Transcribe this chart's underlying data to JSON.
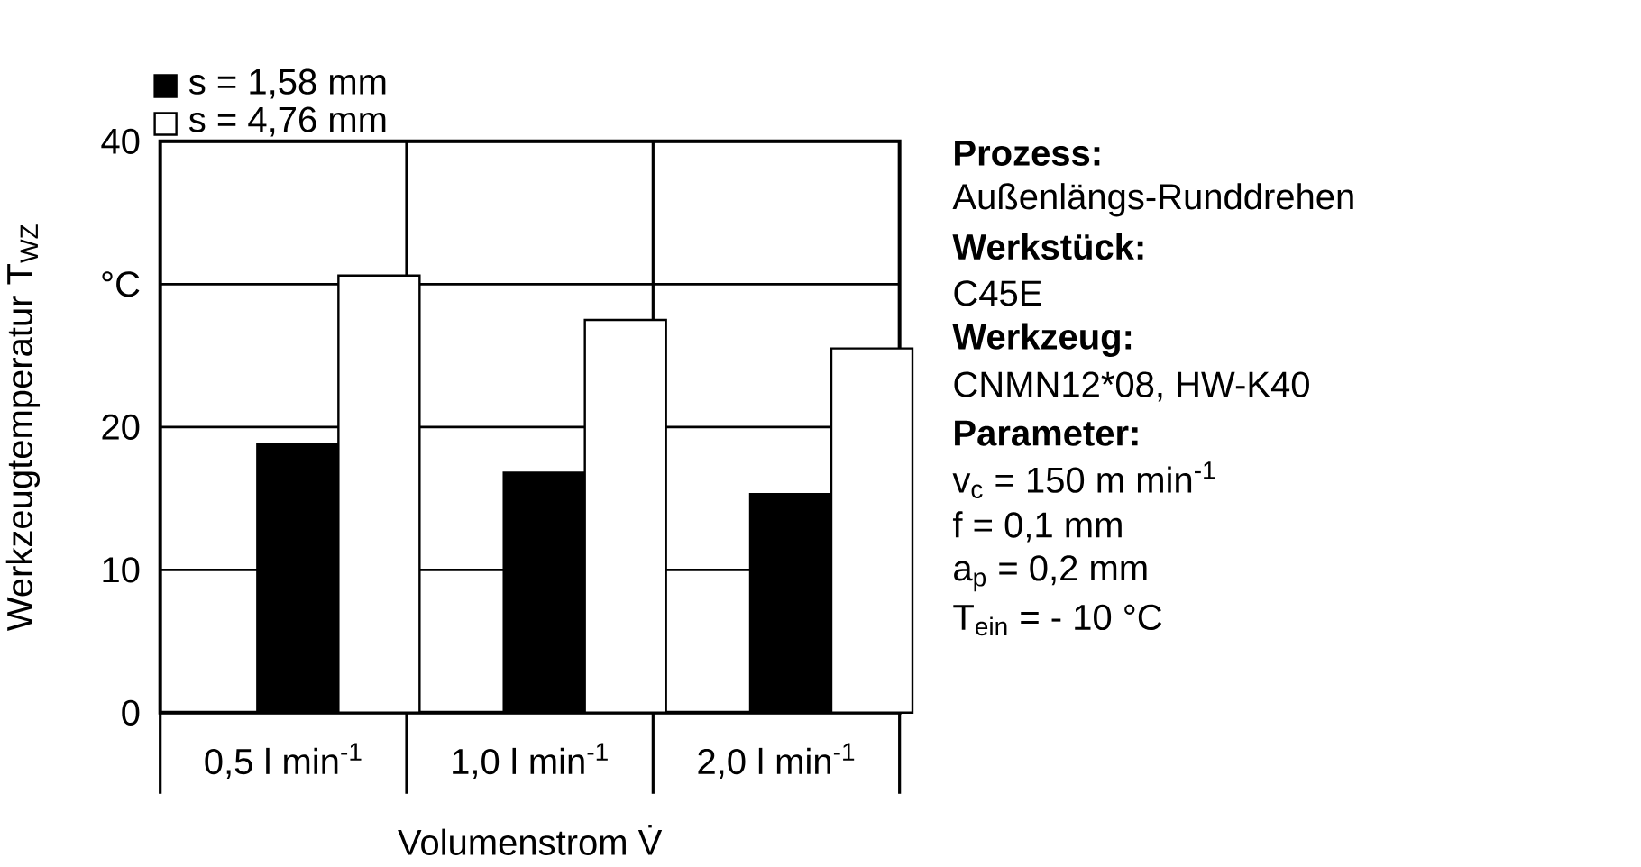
{
  "chart_data": {
    "type": "bar",
    "categories": [
      "0,5 l min$^{-1}$",
      "1,0 l min$^{-1}$",
      "2,0 l min$^{-1}$"
    ],
    "series": [
      {
        "name": "s   =   1,58   mm",
        "color": "#000000",
        "values": [
          18.8,
          16.8,
          15.3
        ]
      },
      {
        "name": "s   =   4,76   mm",
        "color": "#ffffff",
        "values": [
          30.6,
          27.5,
          25.5
        ]
      }
    ],
    "xlabel": "Volumenstrom V̇",
    "ylabel": "Werkzeugtemperatur T$_{WZ}$",
    "ylim": [
      0,
      40
    ],
    "yticks": [
      0,
      10,
      20,
      {
        "value": 30,
        "label": "°C"
      },
      40
    ],
    "grid": "y",
    "legend": "top left",
    "annotations": [
      "**Prozess:**",
      "Außenlängs-Runddrehen",
      "**Werkstück:**",
      "C45E",
      "**Werkzeug:**",
      "CNMN12*08, HW-K40",
      "**Parameter:**",
      "v$_{c}$  =  150   m min$^{-1}$",
      "f    =      0,1  mm",
      "a$_{p}$  =      0,2  mm",
      "T$_{ein}$ =  - 10    °C"
    ]
  }
}
